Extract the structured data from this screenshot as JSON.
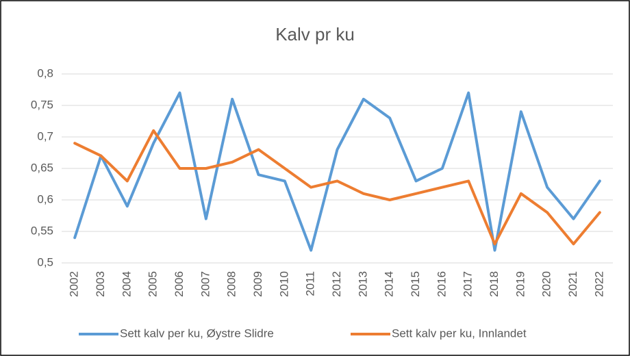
{
  "chart_data": {
    "type": "line",
    "title": "Kalv pr ku",
    "categories": [
      "2002",
      "2003",
      "2004",
      "2005",
      "2006",
      "2007",
      "2008",
      "2009",
      "2010",
      "2011",
      "2012",
      "2013",
      "2014",
      "2015",
      "2016",
      "2017",
      "2018",
      "2019",
      "2020",
      "2021",
      "2022"
    ],
    "series": [
      {
        "name": "Sett kalv per ku, Øystre Slidre",
        "color": "#5b9bd5",
        "values": [
          0.54,
          0.67,
          0.59,
          0.69,
          0.77,
          0.57,
          0.76,
          0.64,
          0.63,
          0.52,
          0.68,
          0.76,
          0.73,
          0.63,
          0.65,
          0.77,
          0.52,
          0.74,
          0.62,
          0.57,
          0.63
        ]
      },
      {
        "name": "Sett kalv per ku, Innlandet",
        "color": "#ed7d31",
        "values": [
          0.69,
          0.67,
          0.63,
          0.71,
          0.65,
          0.65,
          0.66,
          0.68,
          0.65,
          0.62,
          0.63,
          0.61,
          0.6,
          0.61,
          0.62,
          0.63,
          0.53,
          0.61,
          0.58,
          0.53,
          0.58
        ]
      }
    ],
    "ylim": [
      0.5,
      0.8
    ],
    "yticks": [
      {
        "value": 0.5,
        "label": "0,5"
      },
      {
        "value": 0.55,
        "label": "0,55"
      },
      {
        "value": 0.6,
        "label": "0,6"
      },
      {
        "value": 0.65,
        "label": "0,65"
      },
      {
        "value": 0.7,
        "label": "0,7"
      },
      {
        "value": 0.75,
        "label": "0,75"
      },
      {
        "value": 0.8,
        "label": "0,8"
      }
    ],
    "grid": true,
    "legend": "bottom"
  }
}
